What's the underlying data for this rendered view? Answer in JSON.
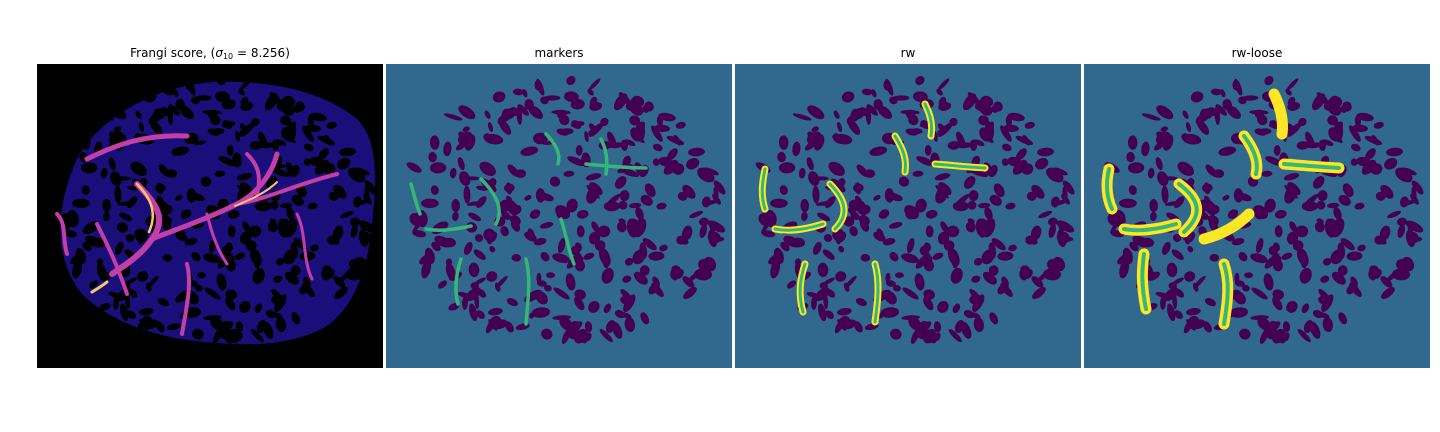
{
  "panels": [
    {
      "title_prefix": "Frangi score, (",
      "title_sigma": "σ",
      "title_subscript": "10",
      "title_suffix": " = 8.256)",
      "colormap": "magma",
      "background": "#000000"
    },
    {
      "title": "markers",
      "colormap": "viridis",
      "background": "#31688e"
    },
    {
      "title": "rw",
      "colormap": "viridis",
      "background": "#31688e"
    },
    {
      "title": "rw-loose",
      "colormap": "viridis",
      "background": "#31688e"
    }
  ],
  "colors": {
    "magma_bg": "#000000",
    "magma_tissue": "#1a0f7a",
    "magma_vessel": "#c23ea8",
    "magma_peak": "#fcc66b",
    "viridis_dark": "#440154",
    "viridis_mid": "#31688e",
    "viridis_green": "#35b779",
    "viridis_yellow": "#fde725"
  }
}
